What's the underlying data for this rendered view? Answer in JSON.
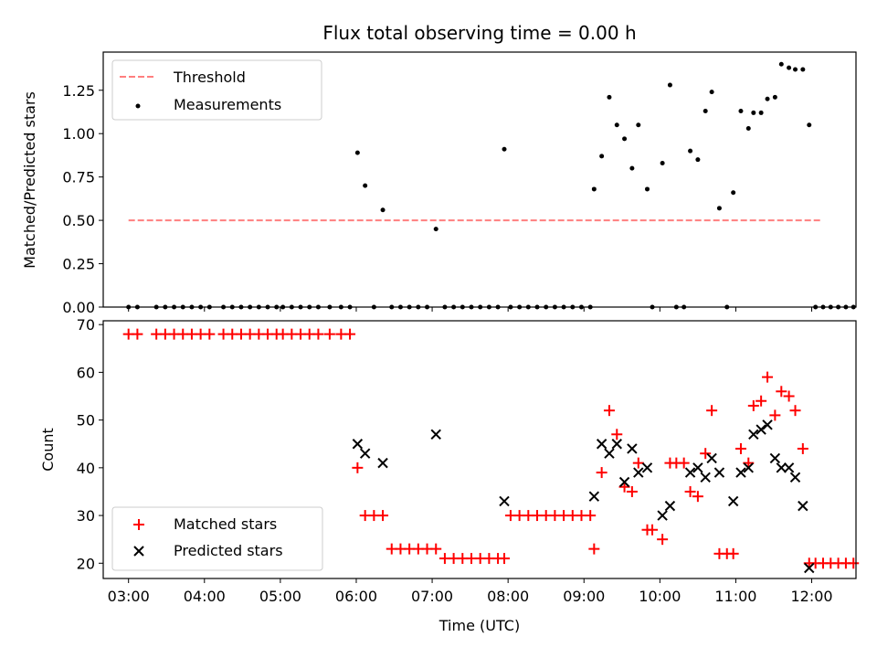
{
  "chart_data": [
    {
      "type": "scatter",
      "title": "Flux total observing time = 0.00 h",
      "ylabel": "Matched/Predicted stars",
      "xlabel": "",
      "xlim": [
        "02:40",
        "12:35"
      ],
      "ylim": [
        0,
        1.47
      ],
      "yticks": [
        0.0,
        0.25,
        0.5,
        0.75,
        1.0,
        1.25
      ],
      "ytick_labels": [
        "0.00",
        "0.25",
        "0.50",
        "0.75",
        "1.00",
        "1.25"
      ],
      "xticks": [
        "03:00",
        "04:00",
        "05:00",
        "06:00",
        "07:00",
        "08:00",
        "09:00",
        "10:00",
        "11:00",
        "12:00"
      ],
      "show_xtick_labels": false,
      "legend": {
        "placement": "top-left",
        "entries": [
          {
            "label": "Threshold",
            "style": "dashed-line",
            "color": "#ff7f7f"
          },
          {
            "label": "Measurements",
            "style": "dot",
            "color": "#000000"
          }
        ]
      },
      "series": [
        {
          "name": "Threshold",
          "kind": "line",
          "color": "#ff7f7f",
          "x": [
            "03:00",
            "12:08"
          ],
          "y": [
            0.5,
            0.5
          ]
        },
        {
          "name": "Measurements",
          "kind": "scatter",
          "color": "#000000",
          "points": [
            [
              "03:00",
              0
            ],
            [
              "03:07",
              0
            ],
            [
              "03:22",
              0
            ],
            [
              "03:29",
              0
            ],
            [
              "03:36",
              0
            ],
            [
              "03:43",
              0
            ],
            [
              "03:50",
              0
            ],
            [
              "03:57",
              0
            ],
            [
              "04:04",
              0
            ],
            [
              "04:15",
              0
            ],
            [
              "04:22",
              0
            ],
            [
              "04:29",
              0
            ],
            [
              "04:36",
              0
            ],
            [
              "04:43",
              0
            ],
            [
              "04:50",
              0
            ],
            [
              "04:57",
              0
            ],
            [
              "05:02",
              0
            ],
            [
              "05:09",
              0
            ],
            [
              "05:16",
              0
            ],
            [
              "05:23",
              0
            ],
            [
              "05:30",
              0
            ],
            [
              "05:39",
              0
            ],
            [
              "05:48",
              0
            ],
            [
              "05:55",
              0
            ],
            [
              "06:01",
              0.89
            ],
            [
              "06:07",
              0.7
            ],
            [
              "06:14",
              0
            ],
            [
              "06:21",
              0.56
            ],
            [
              "06:28",
              0
            ],
            [
              "06:35",
              0
            ],
            [
              "06:42",
              0
            ],
            [
              "06:49",
              0
            ],
            [
              "06:56",
              0
            ],
            [
              "07:03",
              0.45
            ],
            [
              "07:10",
              0
            ],
            [
              "07:17",
              0
            ],
            [
              "07:24",
              0
            ],
            [
              "07:31",
              0
            ],
            [
              "07:38",
              0
            ],
            [
              "07:45",
              0
            ],
            [
              "07:52",
              0
            ],
            [
              "07:57",
              0.91
            ],
            [
              "08:02",
              0
            ],
            [
              "08:09",
              0
            ],
            [
              "08:16",
              0
            ],
            [
              "08:23",
              0
            ],
            [
              "08:30",
              0
            ],
            [
              "08:37",
              0
            ],
            [
              "08:44",
              0
            ],
            [
              "08:51",
              0
            ],
            [
              "08:58",
              0
            ],
            [
              "09:05",
              0
            ],
            [
              "09:08",
              0.68
            ],
            [
              "09:14",
              0.87
            ],
            [
              "09:20",
              1.21
            ],
            [
              "09:26",
              1.05
            ],
            [
              "09:32",
              0.97
            ],
            [
              "09:38",
              0.8
            ],
            [
              "09:43",
              1.05
            ],
            [
              "09:50",
              0.68
            ],
            [
              "09:54",
              0
            ],
            [
              "10:02",
              0.83
            ],
            [
              "10:08",
              1.28
            ],
            [
              "10:13",
              0
            ],
            [
              "10:19",
              0
            ],
            [
              "10:24",
              0.9
            ],
            [
              "10:30",
              0.85
            ],
            [
              "10:36",
              1.13
            ],
            [
              "10:41",
              1.24
            ],
            [
              "10:47",
              0.57
            ],
            [
              "10:53",
              0
            ],
            [
              "10:58",
              0.66
            ],
            [
              "11:04",
              1.13
            ],
            [
              "11:10",
              1.03
            ],
            [
              "11:14",
              1.12
            ],
            [
              "11:20",
              1.12
            ],
            [
              "11:25",
              1.2
            ],
            [
              "11:31",
              1.21
            ],
            [
              "11:36",
              1.4
            ],
            [
              "11:42",
              1.38
            ],
            [
              "11:47",
              1.37
            ],
            [
              "11:53",
              1.37
            ],
            [
              "11:58",
              1.05
            ],
            [
              "12:03",
              0
            ],
            [
              "12:09",
              0
            ],
            [
              "12:15",
              0
            ],
            [
              "12:21",
              0
            ],
            [
              "12:27",
              0
            ],
            [
              "12:33",
              0
            ]
          ]
        }
      ]
    },
    {
      "type": "scatter",
      "title": "",
      "ylabel": "Count",
      "xlabel": "Time (UTC)",
      "xlim": [
        "02:40",
        "12:35"
      ],
      "ylim": [
        16.8,
        70.8
      ],
      "yticks": [
        20,
        30,
        40,
        50,
        60,
        70
      ],
      "ytick_labels": [
        "20",
        "30",
        "40",
        "50",
        "60",
        "70"
      ],
      "xticks": [
        "03:00",
        "04:00",
        "05:00",
        "06:00",
        "07:00",
        "08:00",
        "09:00",
        "10:00",
        "11:00",
        "12:00"
      ],
      "xtick_labels": [
        "03:00",
        "04:00",
        "05:00",
        "06:00",
        "07:00",
        "08:00",
        "09:00",
        "10:00",
        "11:00",
        "12:00"
      ],
      "legend": {
        "placement": "bottom-left",
        "entries": [
          {
            "label": "Matched stars",
            "style": "plus",
            "color": "#ff0000"
          },
          {
            "label": "Predicted stars",
            "style": "x",
            "color": "#000000"
          }
        ]
      },
      "series": [
        {
          "name": "Matched stars",
          "kind": "scatter",
          "marker": "plus",
          "color": "#ff0000",
          "points": [
            [
              "03:00",
              68
            ],
            [
              "03:07",
              68
            ],
            [
              "03:22",
              68
            ],
            [
              "03:29",
              68
            ],
            [
              "03:36",
              68
            ],
            [
              "03:43",
              68
            ],
            [
              "03:50",
              68
            ],
            [
              "03:57",
              68
            ],
            [
              "04:04",
              68
            ],
            [
              "04:15",
              68
            ],
            [
              "04:22",
              68
            ],
            [
              "04:29",
              68
            ],
            [
              "04:36",
              68
            ],
            [
              "04:43",
              68
            ],
            [
              "04:50",
              68
            ],
            [
              "04:57",
              68
            ],
            [
              "05:02",
              68
            ],
            [
              "05:09",
              68
            ],
            [
              "05:16",
              68
            ],
            [
              "05:23",
              68
            ],
            [
              "05:30",
              68
            ],
            [
              "05:39",
              68
            ],
            [
              "05:48",
              68
            ],
            [
              "05:55",
              68
            ],
            [
              "06:01",
              40
            ],
            [
              "06:07",
              30
            ],
            [
              "06:14",
              30
            ],
            [
              "06:21",
              30
            ],
            [
              "06:28",
              23
            ],
            [
              "06:35",
              23
            ],
            [
              "06:42",
              23
            ],
            [
              "06:49",
              23
            ],
            [
              "06:56",
              23
            ],
            [
              "07:03",
              23
            ],
            [
              "07:10",
              21
            ],
            [
              "07:17",
              21
            ],
            [
              "07:24",
              21
            ],
            [
              "07:31",
              21
            ],
            [
              "07:38",
              21
            ],
            [
              "07:45",
              21
            ],
            [
              "07:52",
              21
            ],
            [
              "07:57",
              21
            ],
            [
              "08:02",
              30
            ],
            [
              "08:09",
              30
            ],
            [
              "08:16",
              30
            ],
            [
              "08:23",
              30
            ],
            [
              "08:30",
              30
            ],
            [
              "08:37",
              30
            ],
            [
              "08:44",
              30
            ],
            [
              "08:51",
              30
            ],
            [
              "08:58",
              30
            ],
            [
              "09:05",
              30
            ],
            [
              "09:08",
              23
            ],
            [
              "09:14",
              39
            ],
            [
              "09:20",
              52
            ],
            [
              "09:26",
              47
            ],
            [
              "09:32",
              36
            ],
            [
              "09:38",
              35
            ],
            [
              "09:43",
              41
            ],
            [
              "09:50",
              27
            ],
            [
              "09:54",
              27
            ],
            [
              "10:02",
              25
            ],
            [
              "10:08",
              41
            ],
            [
              "10:13",
              41
            ],
            [
              "10:19",
              41
            ],
            [
              "10:24",
              35
            ],
            [
              "10:30",
              34
            ],
            [
              "10:36",
              43
            ],
            [
              "10:41",
              52
            ],
            [
              "10:47",
              22
            ],
            [
              "10:53",
              22
            ],
            [
              "10:58",
              22
            ],
            [
              "11:04",
              44
            ],
            [
              "11:10",
              41
            ],
            [
              "11:14",
              53
            ],
            [
              "11:20",
              54
            ],
            [
              "11:25",
              59
            ],
            [
              "11:31",
              51
            ],
            [
              "11:36",
              56
            ],
            [
              "11:42",
              55
            ],
            [
              "11:47",
              52
            ],
            [
              "11:53",
              44
            ],
            [
              "11:58",
              20
            ],
            [
              "12:03",
              20
            ],
            [
              "12:09",
              20
            ],
            [
              "12:15",
              20
            ],
            [
              "12:21",
              20
            ],
            [
              "12:27",
              20
            ],
            [
              "12:33",
              20
            ]
          ]
        },
        {
          "name": "Predicted stars",
          "kind": "scatter",
          "marker": "x",
          "color": "#000000",
          "points": [
            [
              "06:01",
              45
            ],
            [
              "06:07",
              43
            ],
            [
              "06:21",
              41
            ],
            [
              "07:03",
              47
            ],
            [
              "07:57",
              33
            ],
            [
              "09:08",
              34
            ],
            [
              "09:14",
              45
            ],
            [
              "09:20",
              43
            ],
            [
              "09:26",
              45
            ],
            [
              "09:32",
              37
            ],
            [
              "09:38",
              44
            ],
            [
              "09:43",
              39
            ],
            [
              "09:50",
              40
            ],
            [
              "10:02",
              30
            ],
            [
              "10:08",
              32
            ],
            [
              "10:24",
              39
            ],
            [
              "10:30",
              40
            ],
            [
              "10:36",
              38
            ],
            [
              "10:41",
              42
            ],
            [
              "10:47",
              39
            ],
            [
              "10:58",
              33
            ],
            [
              "11:04",
              39
            ],
            [
              "11:10",
              40
            ],
            [
              "11:14",
              47
            ],
            [
              "11:20",
              48
            ],
            [
              "11:25",
              49
            ],
            [
              "11:31",
              42
            ],
            [
              "11:36",
              40
            ],
            [
              "11:42",
              40
            ],
            [
              "11:47",
              38
            ],
            [
              "11:53",
              32
            ],
            [
              "11:58",
              19
            ]
          ]
        }
      ]
    }
  ]
}
